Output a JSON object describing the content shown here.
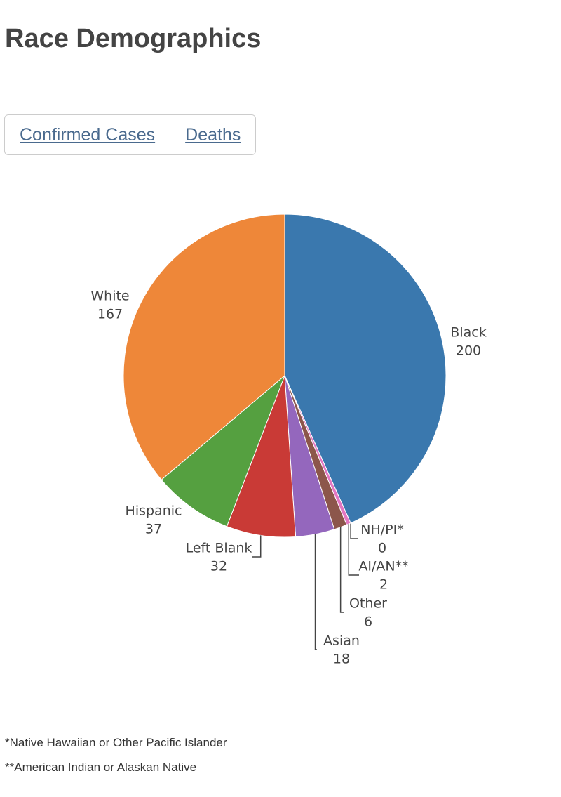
{
  "header": {
    "title": "Race Demographics"
  },
  "tabs": [
    "Confirmed Cases",
    "Deaths"
  ],
  "chart_data": {
    "type": "pie",
    "categories": [
      "Black",
      "NH/PI*",
      "AI/AN**",
      "Other",
      "Asian",
      "Left Blank",
      "Hispanic",
      "White"
    ],
    "values": [
      200,
      0,
      2,
      6,
      18,
      32,
      37,
      167
    ],
    "colors": [
      "#3a78ae",
      "#7f7f7f",
      "#e377c2",
      "#8c564b",
      "#9467bd",
      "#c93a36",
      "#55a040",
      "#ee8739"
    ]
  },
  "footnotes": [
    "*Native Hawaiian or Other Pacific Islander",
    "**American Indian or Alaskan Native"
  ]
}
